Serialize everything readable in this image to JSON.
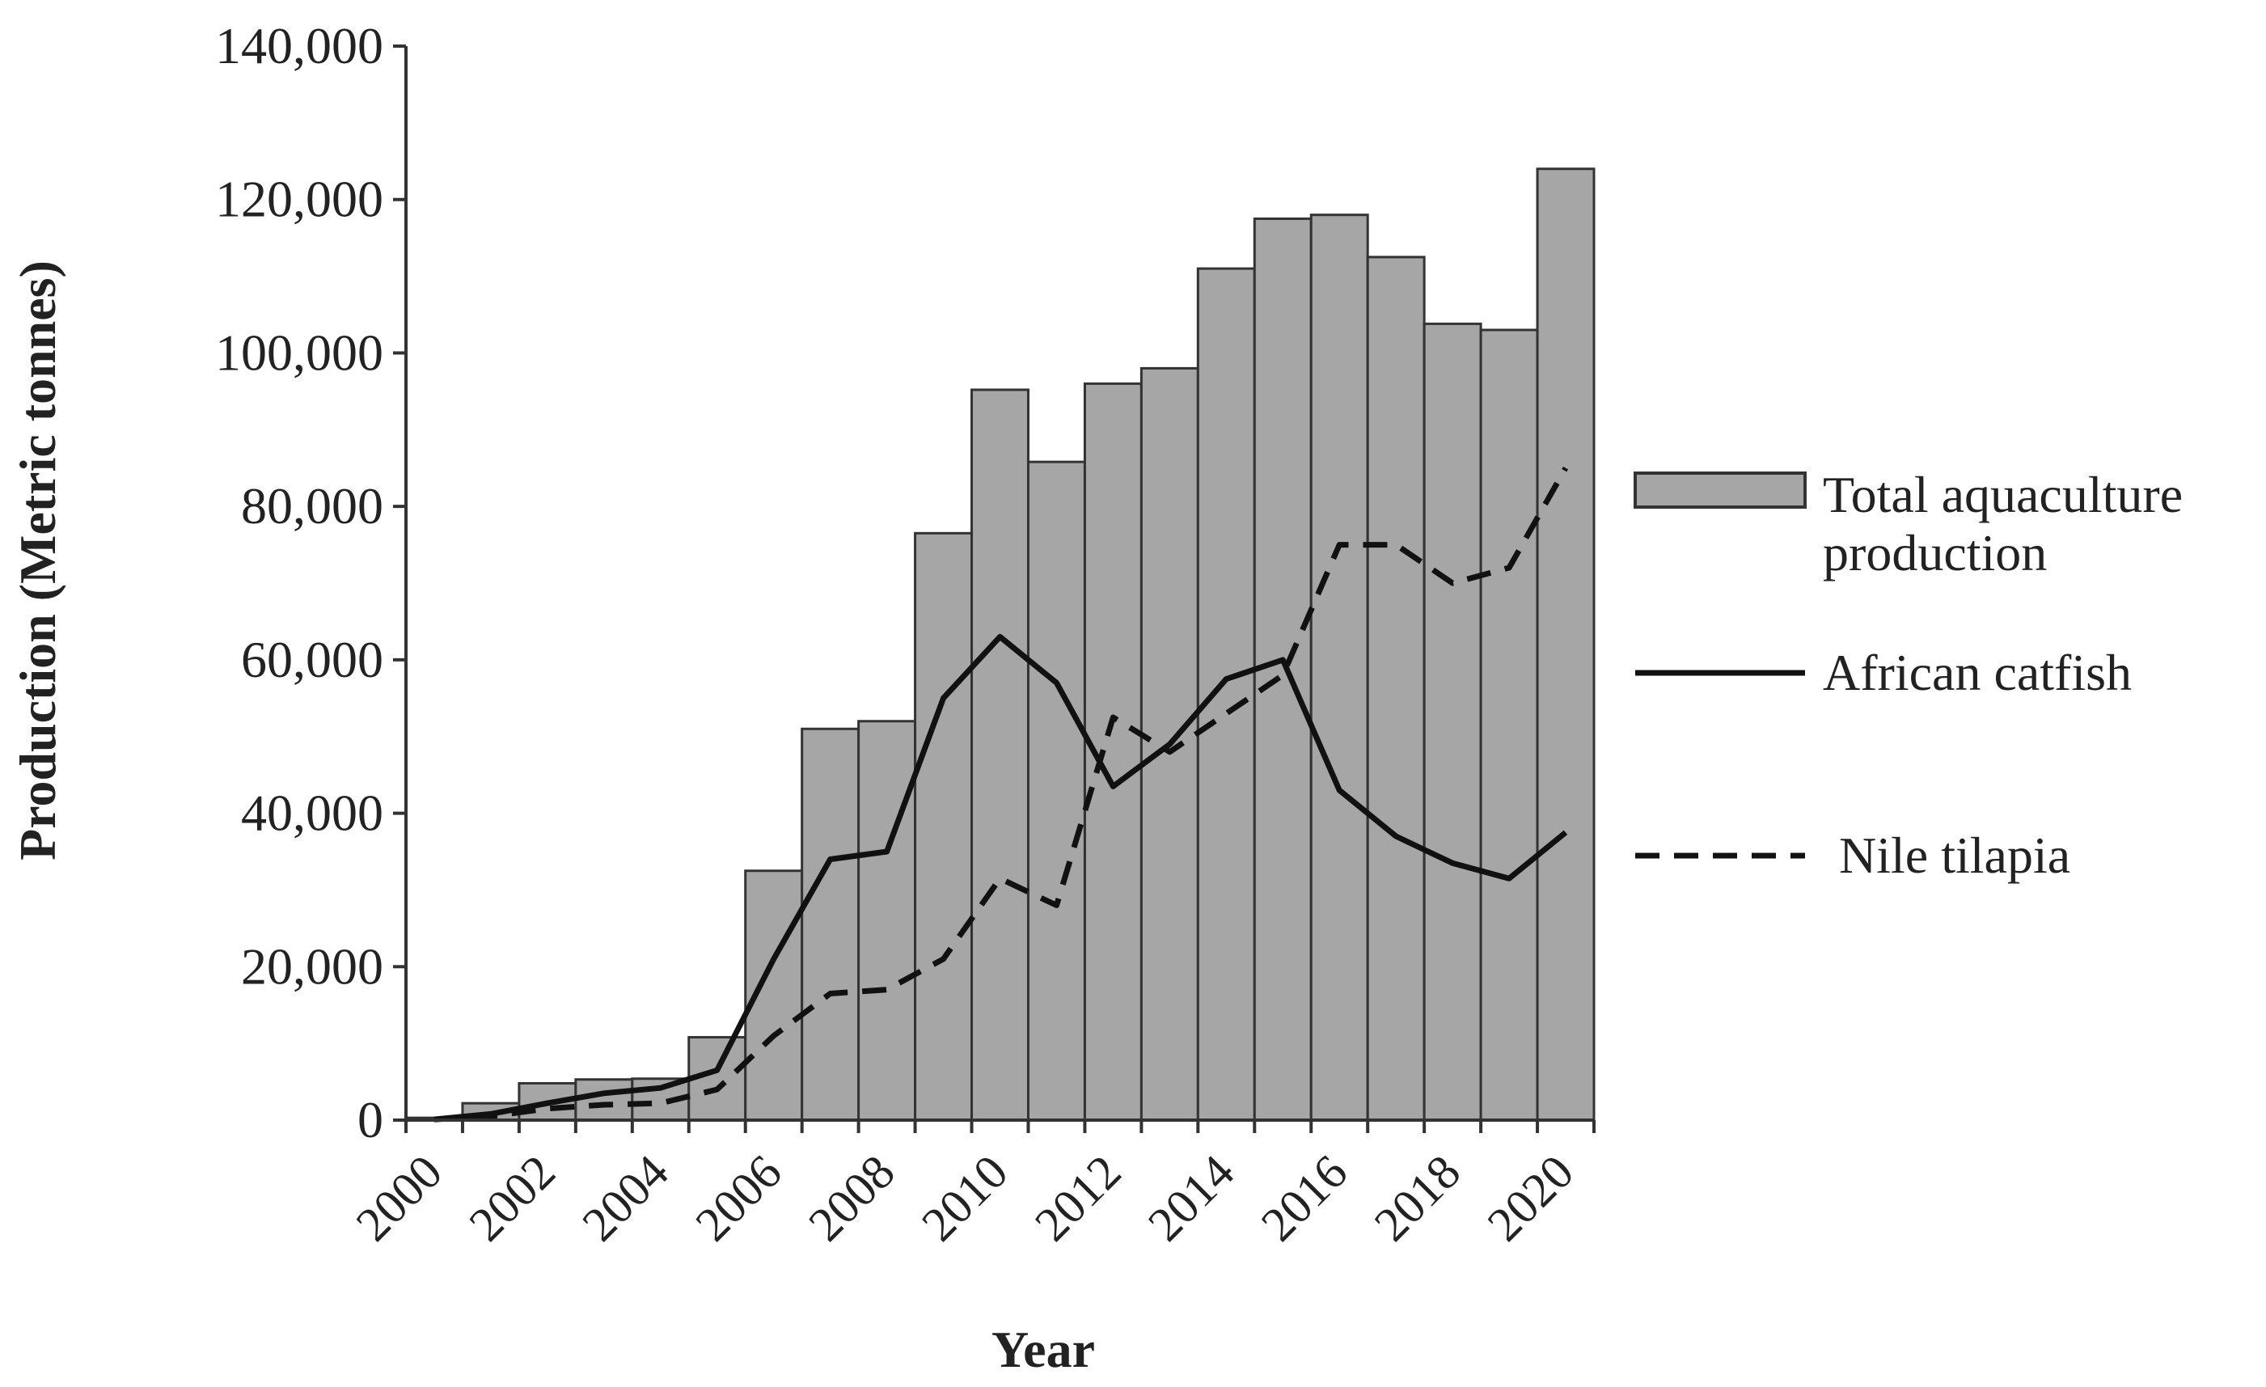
{
  "chart_data": {
    "type": "bar",
    "xlabel": "Year",
    "ylabel": "Production (Metric tonnes)",
    "ylim": [
      0,
      140000
    ],
    "y_ticks": [
      "0",
      "20,000",
      "40,000",
      "60,000",
      "80,000",
      "100,000",
      "120,000",
      "140,000"
    ],
    "x_ticks": [
      "2000",
      "2002",
      "2004",
      "2006",
      "2008",
      "2010",
      "2012",
      "2014",
      "2016",
      "2018",
      "2020"
    ],
    "categories": [
      "2000",
      "2001",
      "2002",
      "2003",
      "2004",
      "2005",
      "2006",
      "2007",
      "2008",
      "2009",
      "2010",
      "2011",
      "2012",
      "2013",
      "2014",
      "2015",
      "2016",
      "2017",
      "2018",
      "2019",
      "2020"
    ],
    "grid": false,
    "legend_position": "right",
    "series": [
      {
        "name": "Total aquaculture production",
        "kind": "bar",
        "color": "#a6a6a6",
        "values": [
          300,
          2200,
          4800,
          5300,
          5400,
          10800,
          32500,
          51000,
          52000,
          76500,
          95200,
          85800,
          96000,
          98000,
          111000,
          117500,
          118000,
          112500,
          103800,
          103000,
          124000
        ]
      },
      {
        "name": "African catfish",
        "kind": "line",
        "color": "#111111",
        "dash": "solid",
        "values": [
          100,
          800,
          2200,
          3500,
          4200,
          6500,
          21000,
          34000,
          35000,
          55000,
          63000,
          57000,
          43500,
          49000,
          57500,
          60000,
          43000,
          37000,
          33500,
          31500,
          37500
        ]
      },
      {
        "name": "Nile tilapia",
        "kind": "line",
        "color": "#111111",
        "dash": "dashed",
        "values": [
          100,
          500,
          1500,
          2000,
          2200,
          4000,
          11000,
          16500,
          17000,
          21000,
          31500,
          28000,
          52500,
          48000,
          53000,
          58000,
          75000,
          75000,
          70000,
          72000,
          85000
        ]
      }
    ]
  }
}
